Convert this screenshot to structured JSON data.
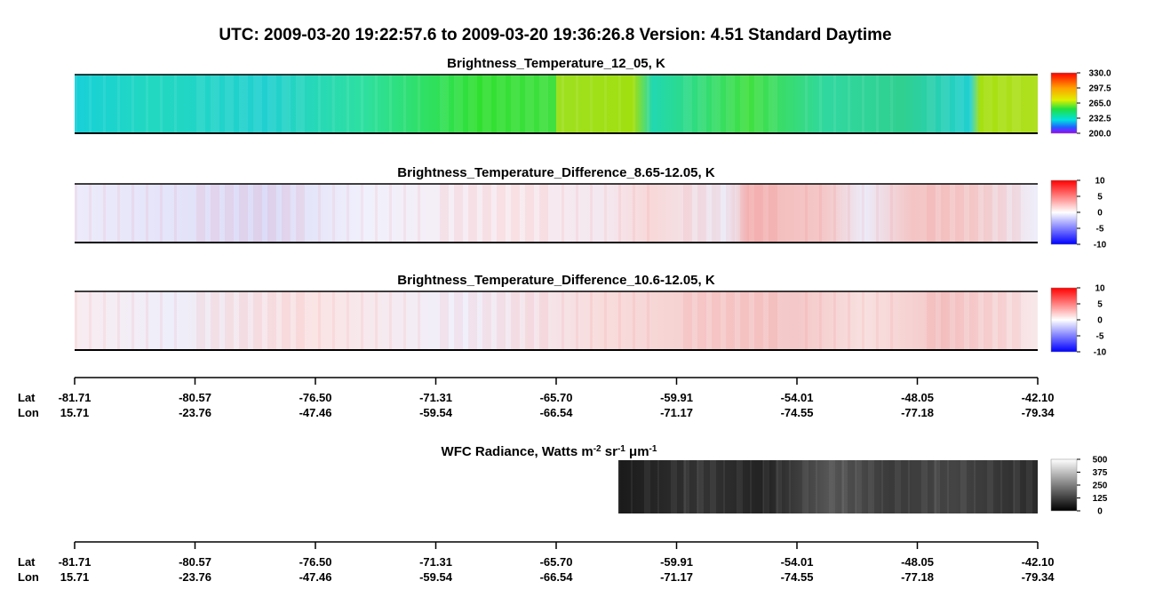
{
  "title": "UTC:  2009-03-20   19:22:57.6  to  2009-03-20   19:36:26.8    Version: 4.51  Standard Daytime",
  "panels": [
    {
      "title": "Brightness_Temperature_12_05, K",
      "colorbar": [
        "330.0",
        "297.5",
        "265.0",
        "232.5",
        "200.0"
      ]
    },
    {
      "title": "Brightness_Temperature_Difference_8.65-12.05, K",
      "colorbar": [
        "10",
        "5",
        "0",
        "-5",
        "-10"
      ]
    },
    {
      "title": "Brightness_Temperature_Difference_10.6-12.05, K",
      "colorbar": [
        "10",
        "5",
        "0",
        "-5",
        "-10"
      ]
    }
  ],
  "wfc": {
    "title_parts": [
      {
        "text": "WFC Radiance, Watts m",
        "sup": "-2"
      },
      {
        "text": " sr",
        "sup": "-1"
      },
      {
        "text": " μm",
        "sup": "-1"
      }
    ],
    "colorbar": [
      "500",
      "375",
      "250",
      "125",
      "0"
    ]
  },
  "axes": [
    {
      "lat_label": "Lat",
      "lon_label": "Lon",
      "lat": [
        "-81.71",
        "-80.57",
        "-76.50",
        "-71.31",
        "-65.70",
        "-59.91",
        "-54.01",
        "-48.05",
        "-42.10"
      ],
      "lon": [
        "15.71",
        "-23.76",
        "-47.46",
        "-59.54",
        "-66.54",
        "-71.17",
        "-74.55",
        "-77.18",
        "-79.34"
      ]
    },
    {
      "lat_label": "Lat",
      "lon_label": "Lon",
      "lat": [
        "-81.71",
        "-80.57",
        "-76.50",
        "-71.31",
        "-65.70",
        "-59.91",
        "-54.01",
        "-48.05",
        "-42.10"
      ],
      "lon": [
        "15.71",
        "-23.76",
        "-47.46",
        "-59.54",
        "-66.54",
        "-71.17",
        "-74.55",
        "-77.18",
        "-79.34"
      ]
    }
  ]
}
